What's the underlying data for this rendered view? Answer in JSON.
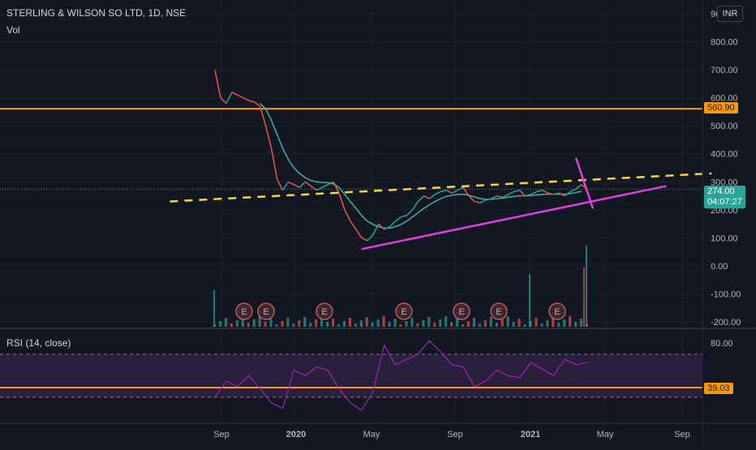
{
  "header": {
    "title": "STERLING & WILSON SO LTD, 1D, NSE",
    "vol_label": "Vol",
    "rsi_label": "RSI (14, close)",
    "currency": "INR"
  },
  "price_tags": {
    "resistance": "560.90",
    "last_price": "274.00",
    "countdown": "04:07:27",
    "rsi_level": "39.03"
  },
  "colors": {
    "background": "#131722",
    "grid": "#1e222d",
    "orange": "#ff9800",
    "yellow_dash": "#f5d63d",
    "magenta": "#e040e0",
    "ma_teal": "#3bb3a6",
    "up": "#26a69a",
    "down": "#ef5350",
    "rsi_line": "#9c27b0",
    "rsi_band": "#2a1f3d"
  },
  "chart_data": {
    "type": "line",
    "title": "STERLING & WILSON SO LTD, 1D, NSE",
    "price_axis_ticks": [
      "900.00",
      "800.00",
      "700.00",
      "600.00",
      "500.00",
      "400.00",
      "300.00",
      "200.00",
      "100.00",
      "0.00",
      "-100.00",
      "-200.00"
    ],
    "rsi_axis_ticks": [
      "80.00"
    ],
    "x_ticks": [
      "Sep",
      "2020",
      "May",
      "Sep",
      "2021",
      "May",
      "Sep"
    ],
    "horizontal_levels": [
      {
        "price": 560.9,
        "color": "orange"
      }
    ],
    "last_price": 274.0,
    "earnings_markers": 7,
    "price_series": {
      "name": "Close",
      "points": [
        [
          0,
          700
        ],
        [
          1,
          600
        ],
        [
          2,
          580
        ],
        [
          3,
          620
        ],
        [
          4,
          610
        ],
        [
          5,
          600
        ],
        [
          6,
          590
        ],
        [
          7,
          585
        ],
        [
          8,
          570
        ],
        [
          9,
          500
        ],
        [
          10,
          420
        ],
        [
          11,
          310
        ],
        [
          12,
          270
        ],
        [
          13,
          300
        ],
        [
          14,
          290
        ],
        [
          15,
          280
        ],
        [
          16,
          300
        ],
        [
          17,
          285
        ],
        [
          18,
          270
        ],
        [
          19,
          280
        ],
        [
          20,
          290
        ],
        [
          21,
          300
        ],
        [
          22,
          260
        ],
        [
          23,
          200
        ],
        [
          24,
          160
        ],
        [
          25,
          130
        ],
        [
          26,
          100
        ],
        [
          27,
          90
        ],
        [
          28,
          110
        ],
        [
          29,
          150
        ],
        [
          30,
          130
        ],
        [
          31,
          140
        ],
        [
          32,
          160
        ],
        [
          33,
          175
        ],
        [
          34,
          180
        ],
        [
          35,
          200
        ],
        [
          36,
          230
        ],
        [
          37,
          250
        ],
        [
          38,
          240
        ],
        [
          39,
          255
        ],
        [
          40,
          265
        ],
        [
          41,
          270
        ],
        [
          42,
          260
        ],
        [
          43,
          270
        ],
        [
          44,
          280
        ],
        [
          45,
          250
        ],
        [
          46,
          230
        ],
        [
          47,
          225
        ],
        [
          48,
          235
        ],
        [
          49,
          240
        ],
        [
          50,
          250
        ],
        [
          51,
          245
        ],
        [
          52,
          255
        ],
        [
          53,
          265
        ],
        [
          54,
          270
        ],
        [
          55,
          250
        ],
        [
          56,
          255
        ],
        [
          57,
          265
        ],
        [
          58,
          270
        ],
        [
          59,
          260
        ],
        [
          60,
          255
        ],
        [
          61,
          260
        ],
        [
          62,
          250
        ],
        [
          63,
          265
        ],
        [
          64,
          275
        ],
        [
          65,
          290
        ],
        [
          66,
          274
        ]
      ]
    },
    "ma_series": {
      "name": "MA",
      "points": [
        [
          8,
          580
        ],
        [
          9,
          560
        ],
        [
          10,
          520
        ],
        [
          11,
          470
        ],
        [
          12,
          420
        ],
        [
          13,
          380
        ],
        [
          14,
          350
        ],
        [
          15,
          330
        ],
        [
          16,
          315
        ],
        [
          17,
          305
        ],
        [
          18,
          300
        ],
        [
          19,
          298
        ],
        [
          20,
          297
        ],
        [
          21,
          292
        ],
        [
          22,
          280
        ],
        [
          23,
          255
        ],
        [
          24,
          230
        ],
        [
          25,
          205
        ],
        [
          26,
          180
        ],
        [
          27,
          160
        ],
        [
          28,
          148
        ],
        [
          29,
          140
        ],
        [
          30,
          135
        ],
        [
          31,
          135
        ],
        [
          32,
          140
        ],
        [
          33,
          148
        ],
        [
          34,
          160
        ],
        [
          35,
          175
        ],
        [
          36,
          190
        ],
        [
          37,
          205
        ],
        [
          38,
          218
        ],
        [
          39,
          230
        ],
        [
          40,
          240
        ],
        [
          41,
          248
        ],
        [
          42,
          252
        ],
        [
          43,
          255
        ],
        [
          44,
          256
        ],
        [
          45,
          252
        ],
        [
          46,
          246
        ],
        [
          47,
          240
        ],
        [
          48,
          238
        ],
        [
          49,
          238
        ],
        [
          50,
          240
        ],
        [
          51,
          242
        ],
        [
          52,
          245
        ],
        [
          53,
          248
        ],
        [
          54,
          250
        ],
        [
          55,
          250
        ],
        [
          56,
          251
        ],
        [
          57,
          253
        ],
        [
          58,
          255
        ],
        [
          59,
          256
        ],
        [
          60,
          256
        ],
        [
          61,
          256
        ],
        [
          62,
          256
        ],
        [
          63,
          258
        ],
        [
          64,
          262
        ],
        [
          65,
          266
        ]
      ]
    },
    "rsi_series": {
      "name": "RSI",
      "level_line": 39.03,
      "points": [
        [
          0,
          30
        ],
        [
          2,
          45
        ],
        [
          4,
          40
        ],
        [
          6,
          50
        ],
        [
          8,
          38
        ],
        [
          10,
          25
        ],
        [
          12,
          20
        ],
        [
          14,
          55
        ],
        [
          16,
          50
        ],
        [
          18,
          58
        ],
        [
          20,
          55
        ],
        [
          22,
          38
        ],
        [
          24,
          25
        ],
        [
          26,
          18
        ],
        [
          28,
          35
        ],
        [
          30,
          78
        ],
        [
          32,
          60
        ],
        [
          34,
          65
        ],
        [
          36,
          70
        ],
        [
          38,
          82
        ],
        [
          40,
          72
        ],
        [
          42,
          60
        ],
        [
          44,
          58
        ],
        [
          46,
          40
        ],
        [
          48,
          45
        ],
        [
          50,
          55
        ],
        [
          52,
          50
        ],
        [
          54,
          48
        ],
        [
          56,
          62
        ],
        [
          58,
          56
        ],
        [
          60,
          50
        ],
        [
          62,
          65
        ],
        [
          64,
          60
        ],
        [
          66,
          62
        ]
      ]
    },
    "trend_lines": [
      {
        "name": "yellow-dashed-resistance",
        "from": [
          -8,
          230
        ],
        "to": [
          88,
          330
        ],
        "style": "dashed"
      },
      {
        "name": "magenta-support",
        "from": [
          26,
          60
        ],
        "to": [
          80,
          285
        ],
        "style": "solid"
      },
      {
        "name": "magenta-breakdown",
        "from": [
          64,
          385
        ],
        "to": [
          67,
          205
        ],
        "style": "solid"
      }
    ]
  }
}
